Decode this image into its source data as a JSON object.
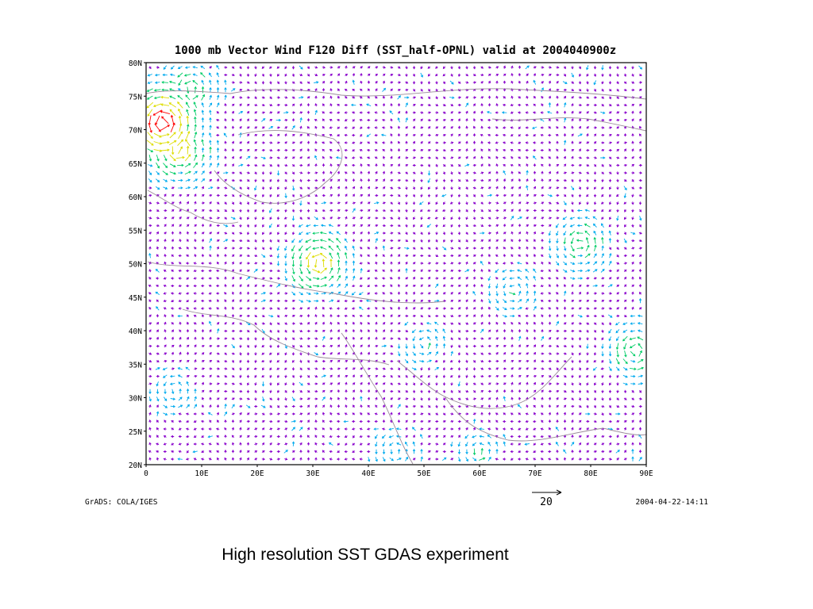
{
  "chart_data": {
    "type": "vector-field-map",
    "title": "1000 mb Vector Wind F120 Diff (SST_half-OPNL) valid at 2004040900z",
    "x_ticks": [
      "0",
      "10E",
      "20E",
      "30E",
      "40E",
      "50E",
      "60E",
      "70E",
      "80E",
      "90E"
    ],
    "y_ticks": [
      "80N",
      "75N",
      "70N",
      "65N",
      "60N",
      "55N",
      "50N",
      "45N",
      "40N",
      "35N",
      "30N",
      "25N",
      "20N"
    ],
    "xlim": [
      0,
      90
    ],
    "ylim": [
      20,
      80
    ],
    "grid": false,
    "reference_vector": "20",
    "color_scale": [
      "#8800cc",
      "#00aaee",
      "#00cc66",
      "#dddd00",
      "#ff0000"
    ],
    "highlight_regions": [
      {
        "lon": 3,
        "lat": 71,
        "level": 4
      },
      {
        "lon": 6,
        "lat": 67,
        "level": 3
      },
      {
        "lon": 31,
        "lat": 50,
        "level": 3
      },
      {
        "lon": 78,
        "lat": 53,
        "level": 2
      },
      {
        "lon": 88,
        "lat": 37,
        "level": 2
      },
      {
        "lon": 8,
        "lat": 76,
        "level": 2
      },
      {
        "lon": 45,
        "lat": 22,
        "level": 1
      },
      {
        "lon": 60,
        "lat": 22,
        "level": 1
      },
      {
        "lon": 66,
        "lat": 46,
        "level": 1
      },
      {
        "lon": 50,
        "lat": 38,
        "level": 1
      },
      {
        "lon": 5,
        "lat": 31,
        "level": 1
      }
    ]
  },
  "footer": {
    "credit": "GrADS: COLA/IGES",
    "timestamp": "2004-04-22-14:11",
    "reference_label": "20"
  },
  "caption": "High resolution SST GDAS experiment"
}
